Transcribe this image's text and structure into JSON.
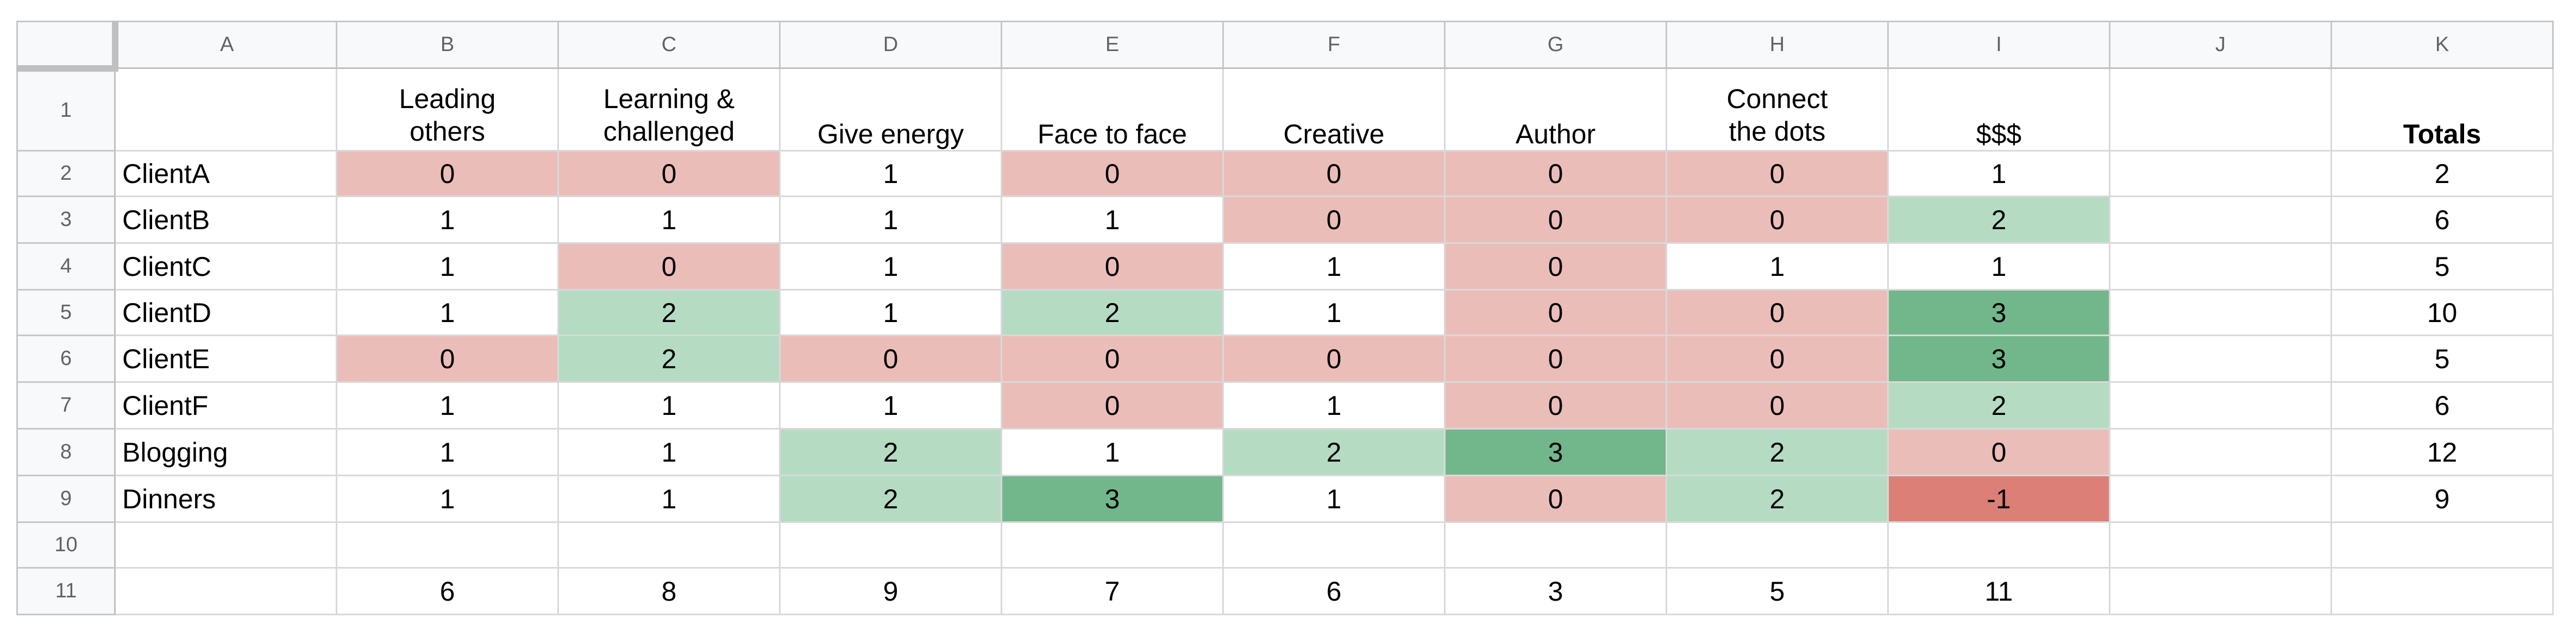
{
  "columns": [
    "A",
    "B",
    "C",
    "D",
    "E",
    "F",
    "G",
    "H",
    "I",
    "J",
    "K"
  ],
  "row_numbers": [
    "1",
    "2",
    "3",
    "4",
    "5",
    "6",
    "7",
    "8",
    "9",
    "10",
    "11"
  ],
  "header_row": {
    "A": "",
    "B": [
      "Leading",
      "others"
    ],
    "C": [
      "Learning &",
      "challenged"
    ],
    "D": "Give energy",
    "E": "Face to face",
    "F": "Creative",
    "G": "Author",
    "H": [
      "Connect",
      "the dots"
    ],
    "I": "$$$",
    "J": "",
    "K": "Totals"
  },
  "rows": [
    {
      "label": "ClientA",
      "values": [
        "0",
        "0",
        "1",
        "0",
        "0",
        "0",
        "0",
        "1"
      ],
      "total": "2"
    },
    {
      "label": "ClientB",
      "values": [
        "1",
        "1",
        "1",
        "1",
        "0",
        "0",
        "0",
        "2"
      ],
      "total": "6"
    },
    {
      "label": "ClientC",
      "values": [
        "1",
        "0",
        "1",
        "0",
        "1",
        "0",
        "1",
        "1"
      ],
      "total": "5"
    },
    {
      "label": "ClientD",
      "values": [
        "1",
        "2",
        "1",
        "2",
        "1",
        "0",
        "0",
        "3"
      ],
      "total": "10"
    },
    {
      "label": "ClientE",
      "values": [
        "0",
        "2",
        "0",
        "0",
        "0",
        "0",
        "0",
        "3"
      ],
      "total": "5"
    },
    {
      "label": "ClientF",
      "values": [
        "1",
        "1",
        "1",
        "0",
        "1",
        "0",
        "0",
        "2"
      ],
      "total": "6"
    },
    {
      "label": "Blogging",
      "values": [
        "1",
        "1",
        "2",
        "1",
        "2",
        "3",
        "2",
        "0"
      ],
      "total": "12"
    },
    {
      "label": "Dinners",
      "values": [
        "1",
        "1",
        "2",
        "3",
        "1",
        "0",
        "2",
        "-1"
      ],
      "total": "9"
    }
  ],
  "column_totals": [
    "6",
    "8",
    "9",
    "7",
    "6",
    "3",
    "5",
    "11"
  ],
  "colors": {
    "-1": "#dc7f76",
    "0": "#ebbdb9",
    "1": "#ffffff",
    "2": "#b5dcc3",
    "3": "#72b78b"
  }
}
